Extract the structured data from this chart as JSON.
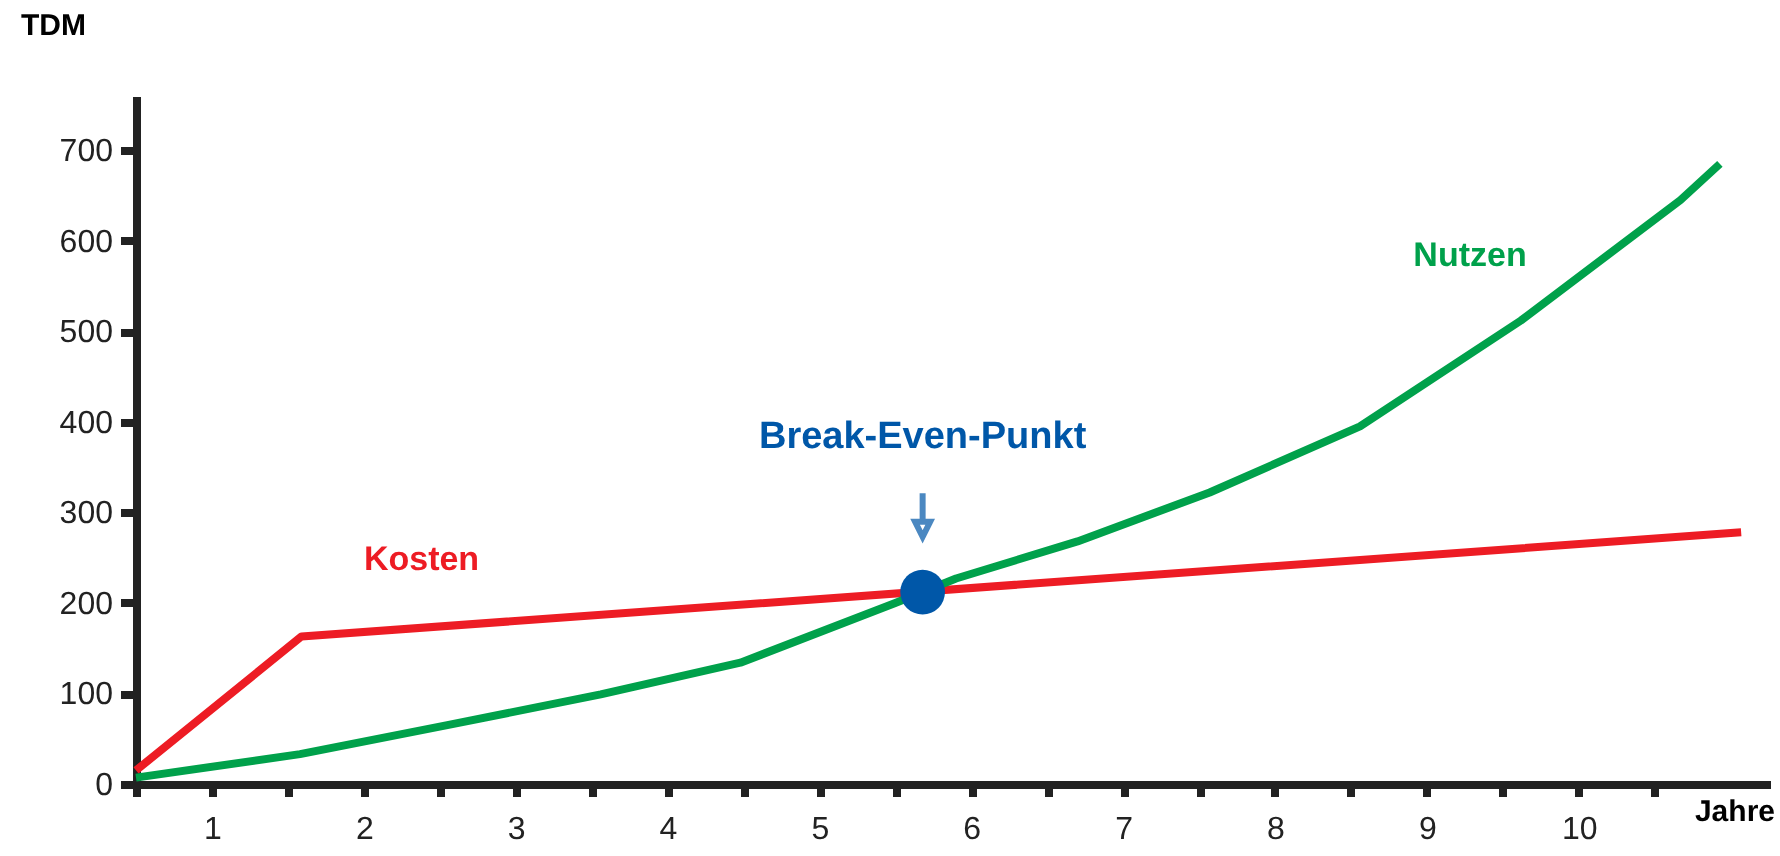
{
  "chart_data": {
    "type": "line",
    "xlabel": "Jahre",
    "ylabel": "TDM",
    "xlim": [
      0,
      10.76
    ],
    "ylim": [
      0,
      760
    ],
    "xticks": [
      {
        "value": 0,
        "label": null
      },
      {
        "value": 0.5,
        "label": "1"
      },
      {
        "value": 1,
        "label": null
      },
      {
        "value": 1.5,
        "label": "2"
      },
      {
        "value": 2,
        "label": null
      },
      {
        "value": 2.5,
        "label": "3"
      },
      {
        "value": 3,
        "label": null
      },
      {
        "value": 3.5,
        "label": "4"
      },
      {
        "value": 4,
        "label": null
      },
      {
        "value": 4.5,
        "label": "5"
      },
      {
        "value": 5,
        "label": null
      },
      {
        "value": 5.5,
        "label": "6"
      },
      {
        "value": 6,
        "label": null
      },
      {
        "value": 6.5,
        "label": "7"
      },
      {
        "value": 7,
        "label": null
      },
      {
        "value": 7.5,
        "label": "8"
      },
      {
        "value": 8,
        "label": null
      },
      {
        "value": 8.5,
        "label": "9"
      },
      {
        "value": 9,
        "label": null
      },
      {
        "value": 9.5,
        "label": "10"
      },
      {
        "value": 10,
        "label": null
      }
    ],
    "yticks": [
      0,
      100,
      200,
      300,
      400,
      500,
      600,
      700
    ],
    "grid": false,
    "line_style": "solid",
    "series": [
      {
        "name": "Kosten",
        "color": "#ed1c24",
        "x": [
          0,
          1.09,
          10.57
        ],
        "values": [
          15,
          163,
          278
        ]
      },
      {
        "name": "Nutzen",
        "color": "#00a14b",
        "x": [
          0,
          1.08,
          2.05,
          3.06,
          3.98,
          5.0,
          5.4,
          6.2,
          7.07,
          8.06,
          9.12,
          10.17,
          10.43
        ],
        "values": [
          7,
          33,
          65,
          99,
          134,
          200,
          227,
          268,
          322,
          395,
          512,
          645,
          685
        ]
      },
      {
        "type": "scatter",
        "marker": "circle",
        "color": "#0057a8",
        "x": [
          5.18
        ],
        "values": [
          212
        ]
      }
    ],
    "annotations": [
      "Break-Even-Punkt"
    ]
  }
}
